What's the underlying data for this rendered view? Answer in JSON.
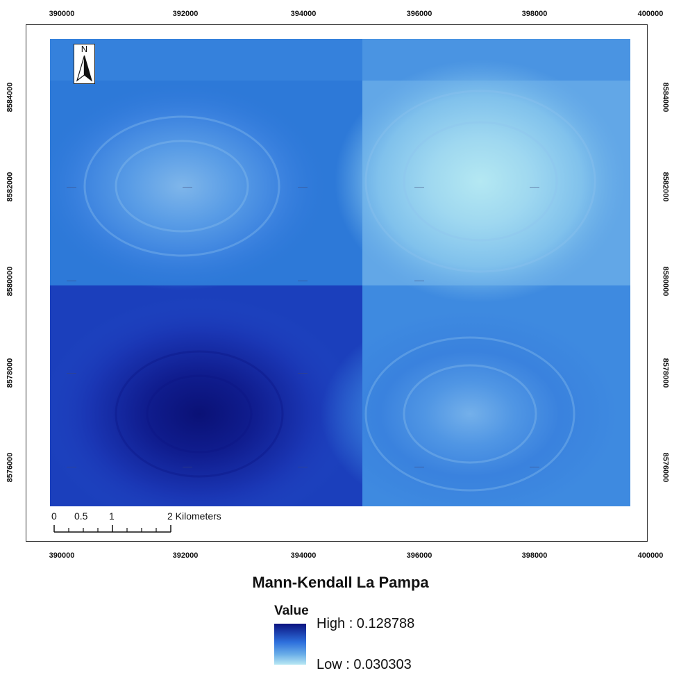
{
  "map": {
    "title": "Mann-Kendall La Pampa",
    "x_ticks": [
      "390000",
      "392000",
      "394000",
      "396000",
      "398000",
      "400000"
    ],
    "y_ticks": [
      "8584000",
      "8582000",
      "8580000",
      "8578000",
      "8576000"
    ],
    "north_arrow": {
      "label": "N",
      "icon": "north-arrow-icon"
    },
    "scale_bar": {
      "labels": [
        "0",
        "0.5",
        "1",
        "2 Kilometers"
      ]
    },
    "legend": {
      "heading": "Value",
      "high_label": "High : 0.128788",
      "low_label": "Low : 0.030303",
      "high_value": 0.128788,
      "low_value": 0.030303,
      "colors": {
        "high": "#0b1380",
        "low": "#b9e8f3"
      }
    }
  }
}
